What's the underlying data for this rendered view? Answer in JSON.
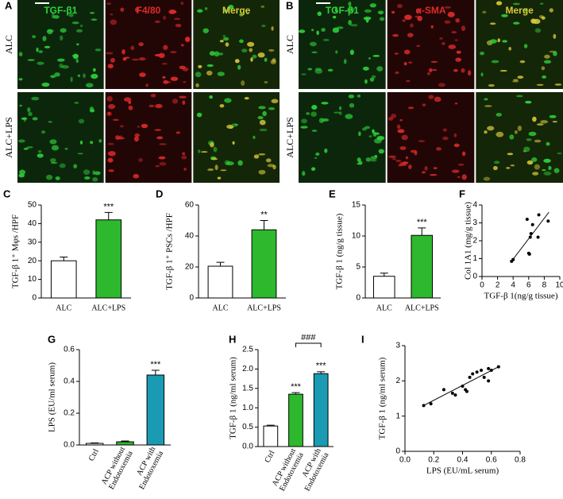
{
  "images": [
    {
      "label": "A",
      "columns": [
        "TGF-β1",
        "F4/80",
        "Merge"
      ],
      "rows": [
        "ALC",
        "ALC+LPS"
      ]
    },
    {
      "label": "B",
      "columns": [
        "TGF-β1",
        "α-SMA",
        "Merge"
      ],
      "rows": [
        "ALC",
        "ALC+LPS"
      ]
    }
  ],
  "chart_data": [
    {
      "type": "bar",
      "label": "C",
      "y_label": "TGF-β 1⁺ Mφs /HPF",
      "categories": [
        "ALC",
        "ALC+LPS"
      ],
      "values": [
        20,
        42
      ],
      "errors": [
        2,
        4
      ],
      "colors": [
        "#ffffff",
        "#2db82d"
      ],
      "ylim": [
        0,
        50
      ],
      "yticks": [
        0,
        10,
        20,
        30,
        40,
        50
      ],
      "annotations": [
        {
          "index": 1,
          "text": "***"
        }
      ]
    },
    {
      "type": "bar",
      "label": "D",
      "y_label": "TGF-β 1⁺ PSCs /HPF",
      "categories": [
        "ALC",
        "ALC+LPS"
      ],
      "values": [
        20.5,
        44
      ],
      "errors": [
        2.5,
        6
      ],
      "colors": [
        "#ffffff",
        "#2db82d"
      ],
      "ylim": [
        0,
        60
      ],
      "yticks": [
        0,
        20,
        40,
        60
      ],
      "annotations": [
        {
          "index": 1,
          "text": "**"
        }
      ]
    },
    {
      "type": "bar",
      "label": "E",
      "y_label": "TGF-β 1 (ng/g tissue)",
      "categories": [
        "ALC",
        "ALC+LPS"
      ],
      "values": [
        3.5,
        10.1
      ],
      "errors": [
        0.5,
        1.2
      ],
      "colors": [
        "#ffffff",
        "#2db82d"
      ],
      "ylim": [
        0,
        15
      ],
      "yticks": [
        0,
        5,
        10,
        15
      ],
      "annotations": [
        {
          "index": 1,
          "text": "***"
        }
      ]
    },
    {
      "type": "scatter",
      "label": "F",
      "x_label": "TGF-β 1(ng/g tissue)",
      "y_label": "Col 1A1 (mg/g tissue)",
      "x": [
        3.8,
        4.0,
        5.8,
        6.0,
        6.1,
        6.2,
        6.3,
        6.5,
        7.2,
        7.3,
        8.5
      ],
      "y": [
        0.85,
        0.95,
        3.2,
        1.3,
        1.25,
        2.2,
        2.4,
        2.9,
        2.2,
        3.45,
        3.1
      ],
      "fit": {
        "x": [
          3.7,
          8.6
        ],
        "y": [
          0.8,
          3.6
        ]
      },
      "xlim": [
        0,
        10
      ],
      "xticks": [
        0,
        2,
        4,
        6,
        8,
        10
      ],
      "ylim": [
        0,
        4
      ],
      "yticks": [
        0,
        1,
        2,
        3,
        4
      ]
    },
    {
      "type": "bar",
      "label": "G",
      "y_label": "LPS (EU/ml serum)",
      "categories": [
        "Ctrl",
        "ACP without\nEndotoxemia",
        "ACP with\nEndotoxemia"
      ],
      "values": [
        0.01,
        0.02,
        0.44
      ],
      "errors": [
        0.003,
        0.005,
        0.03
      ],
      "colors": [
        "#ffffff",
        "#2db82d",
        "#1a9ab3"
      ],
      "ylim": [
        0,
        0.6
      ],
      "yticks": [
        {
          "value": 0,
          "label": "0.0"
        },
        0.2,
        0.4,
        0.6
      ],
      "annotations": [
        {
          "index": 2,
          "text": "***"
        }
      ]
    },
    {
      "type": "bar",
      "label": "H",
      "y_label": "TGF-β 1 (ng/ml serum)",
      "categories": [
        "Ctrl",
        "ACP without\nEndotoxemia",
        "ACP with\nEndotoxemia"
      ],
      "values": [
        0.53,
        1.35,
        1.88
      ],
      "errors": [
        0.02,
        0.04,
        0.05
      ],
      "colors": [
        "#ffffff",
        "#2db82d",
        "#1a9ab3"
      ],
      "ylim": [
        0,
        2.5
      ],
      "yticks": [
        {
          "value": 0,
          "label": "0.0"
        },
        0.5,
        {
          "value": 1,
          "label": "1.0"
        },
        1.5,
        {
          "value": 2,
          "label": "2.0"
        },
        2.5
      ],
      "annotations": [
        {
          "index": 1,
          "text": "***"
        },
        {
          "index": 2,
          "text": "***"
        }
      ],
      "bracket": {
        "from": 1,
        "to": 2,
        "text": "###"
      }
    },
    {
      "type": "scatter",
      "label": "I",
      "x_label": "LPS (EU/mL serum)",
      "y_label": "TGF-β 1 (ng/ml serum)",
      "x": [
        0.13,
        0.18,
        0.27,
        0.33,
        0.35,
        0.4,
        0.42,
        0.43,
        0.45,
        0.47,
        0.5,
        0.53,
        0.55,
        0.58,
        0.58,
        0.6,
        0.65
      ],
      "y": [
        1.3,
        1.35,
        1.75,
        1.65,
        1.6,
        1.85,
        1.75,
        1.7,
        2.1,
        2.2,
        2.25,
        2.3,
        2.1,
        2.35,
        2.0,
        2.3,
        2.4
      ],
      "fit": {
        "x": [
          0.12,
          0.66
        ],
        "y": [
          1.28,
          2.42
        ]
      },
      "xlim": [
        0,
        0.8
      ],
      "xticks": [
        {
          "value": 0,
          "label": "0.0"
        },
        0.2,
        0.4,
        0.6,
        0.8
      ],
      "ylim": [
        0,
        3
      ],
      "yticks": [
        0,
        1,
        2,
        3
      ]
    }
  ]
}
